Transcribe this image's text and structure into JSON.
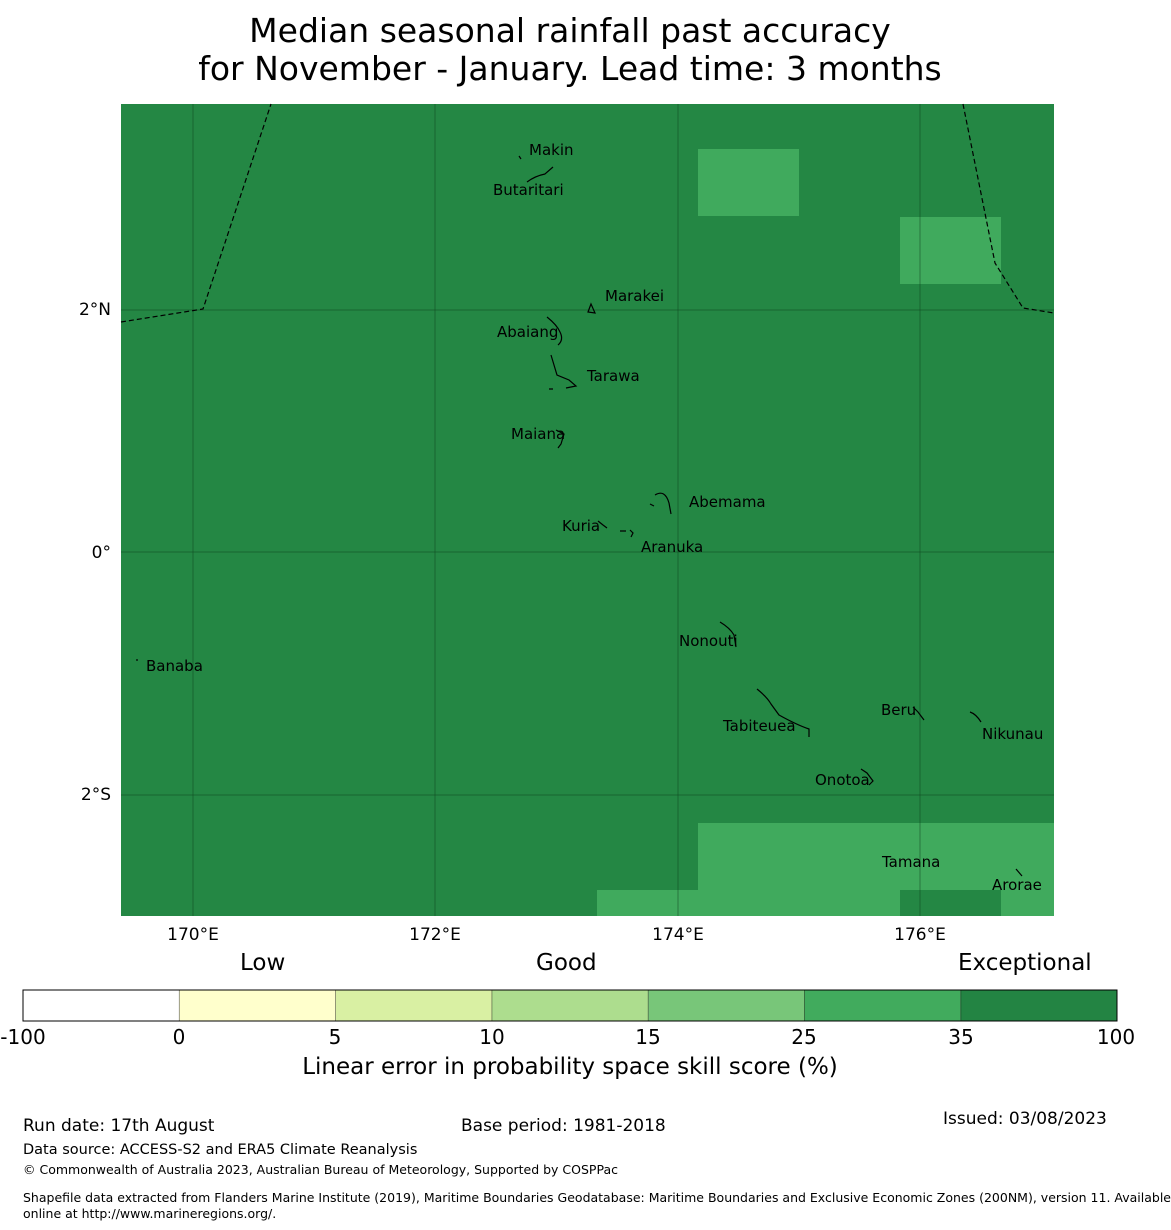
{
  "title": {
    "line1": "Median seasonal rainfall past accuracy",
    "line2": "for November - January. Lead time: 3 months"
  },
  "colors": {
    "base": "#248744",
    "highlight": "#40aa5d",
    "bin_colors": [
      "#ffffff",
      "#ffffcc",
      "#d9f0a3",
      "#addd8e",
      "#78c679",
      "#41ab5d",
      "#238443"
    ]
  },
  "map": {
    "lon_ticks": [
      "170°E",
      "172°E",
      "174°E",
      "176°E"
    ],
    "lat_ticks": [
      "2°N",
      "0°",
      "2°S"
    ],
    "islands": [
      {
        "name": "Makin"
      },
      {
        "name": "Butaritari"
      },
      {
        "name": "Marakei"
      },
      {
        "name": "Abaiang"
      },
      {
        "name": "Tarawa"
      },
      {
        "name": "Maiana"
      },
      {
        "name": "Abemama"
      },
      {
        "name": "Kuria"
      },
      {
        "name": "Aranuka"
      },
      {
        "name": "Banaba"
      },
      {
        "name": "Nonouti"
      },
      {
        "name": "Beru"
      },
      {
        "name": "Tabiteuea"
      },
      {
        "name": "Nikunau"
      },
      {
        "name": "Onotoa"
      },
      {
        "name": "Tamana"
      },
      {
        "name": "Arorae"
      }
    ]
  },
  "colorbar": {
    "categories": [
      "Low",
      "Good",
      "Exceptional"
    ],
    "ticks": [
      "-100",
      "0",
      "5",
      "10",
      "15",
      "25",
      "35",
      "100"
    ],
    "label": "Linear error in probability space skill score (%)"
  },
  "footer": {
    "run_date": "Run date: 17th August",
    "base_period": "Base period: 1981-2018",
    "issued": "Issued: 03/08/2023",
    "data_source": "Data source: ACCESS-S2 and ERA5 Climate Reanalysis",
    "copyright": "© Commonwealth of Australia 2023, Australian Bureau of Meteorology, Supported by COSPPac",
    "shapefile_line1": "Shapefile data extracted from Flanders Marine Institute (2019), Maritime Boundaries Geodatabase: Maritime Boundaries and Exclusive Economic Zones (200NM), version 11. Available",
    "shapefile_line2": "online at http://www.marineregions.org/."
  }
}
